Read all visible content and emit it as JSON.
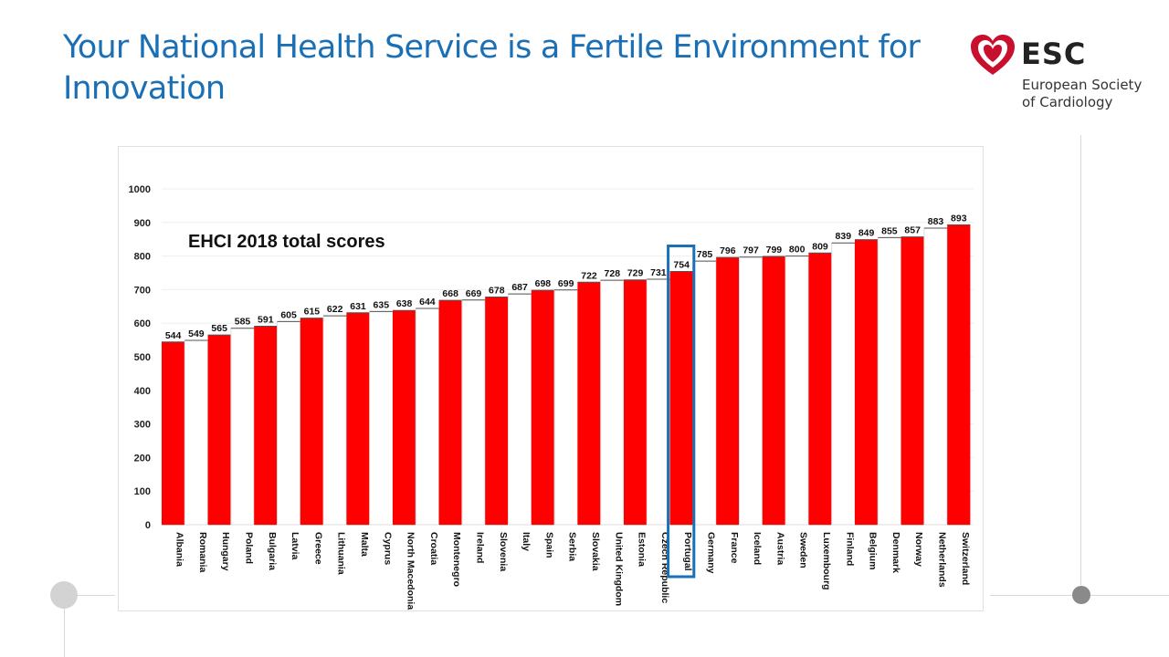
{
  "slide": {
    "title": "Your National Health Service is a Fertile Environment for Innovation"
  },
  "logo": {
    "brand": "ESC",
    "line1": "European Society",
    "line2": "of Cardiology",
    "icon": "heart-icon",
    "colors": {
      "heart": "#c8102e",
      "text": "#222222"
    }
  },
  "chart_data": {
    "type": "bar",
    "title": "EHCI 2018 total scores",
    "categories": [
      "Albania",
      "Romania",
      "Hungary",
      "Poland",
      "Bulgaria",
      "Latvia",
      "Greece",
      "Lithuania",
      "Malta",
      "Cyprus",
      "North Macedonia",
      "Croatia",
      "Montenegro",
      "Ireland",
      "Slovenia",
      "Italy",
      "Spain",
      "Serbia",
      "Slovakia",
      "United Kingdom",
      "Estonia",
      "Czech Republic",
      "Portugal",
      "Germany",
      "France",
      "Iceland",
      "Austria",
      "Sweden",
      "Luxembourg",
      "Finland",
      "Belgium",
      "Denmark",
      "Norway",
      "Netherlands",
      "Switzerland"
    ],
    "values": [
      544,
      549,
      565,
      585,
      591,
      605,
      615,
      622,
      631,
      635,
      638,
      644,
      668,
      669,
      678,
      687,
      698,
      699,
      722,
      728,
      729,
      731,
      754,
      785,
      796,
      797,
      799,
      800,
      809,
      839,
      849,
      855,
      857,
      883,
      893
    ],
    "fill_pattern": "alternating red / white bars",
    "highlighted": "Portugal",
    "ylim": [
      0,
      1000
    ],
    "yticks": [
      "0",
      "100",
      "200",
      "300",
      "400",
      "500",
      "600",
      "700",
      "800",
      "900",
      "1000"
    ],
    "grid": true,
    "colors": {
      "red": "#ff0000",
      "white": "#ffffff",
      "outline": "#555555",
      "highlight": "#1a6fb5"
    }
  }
}
